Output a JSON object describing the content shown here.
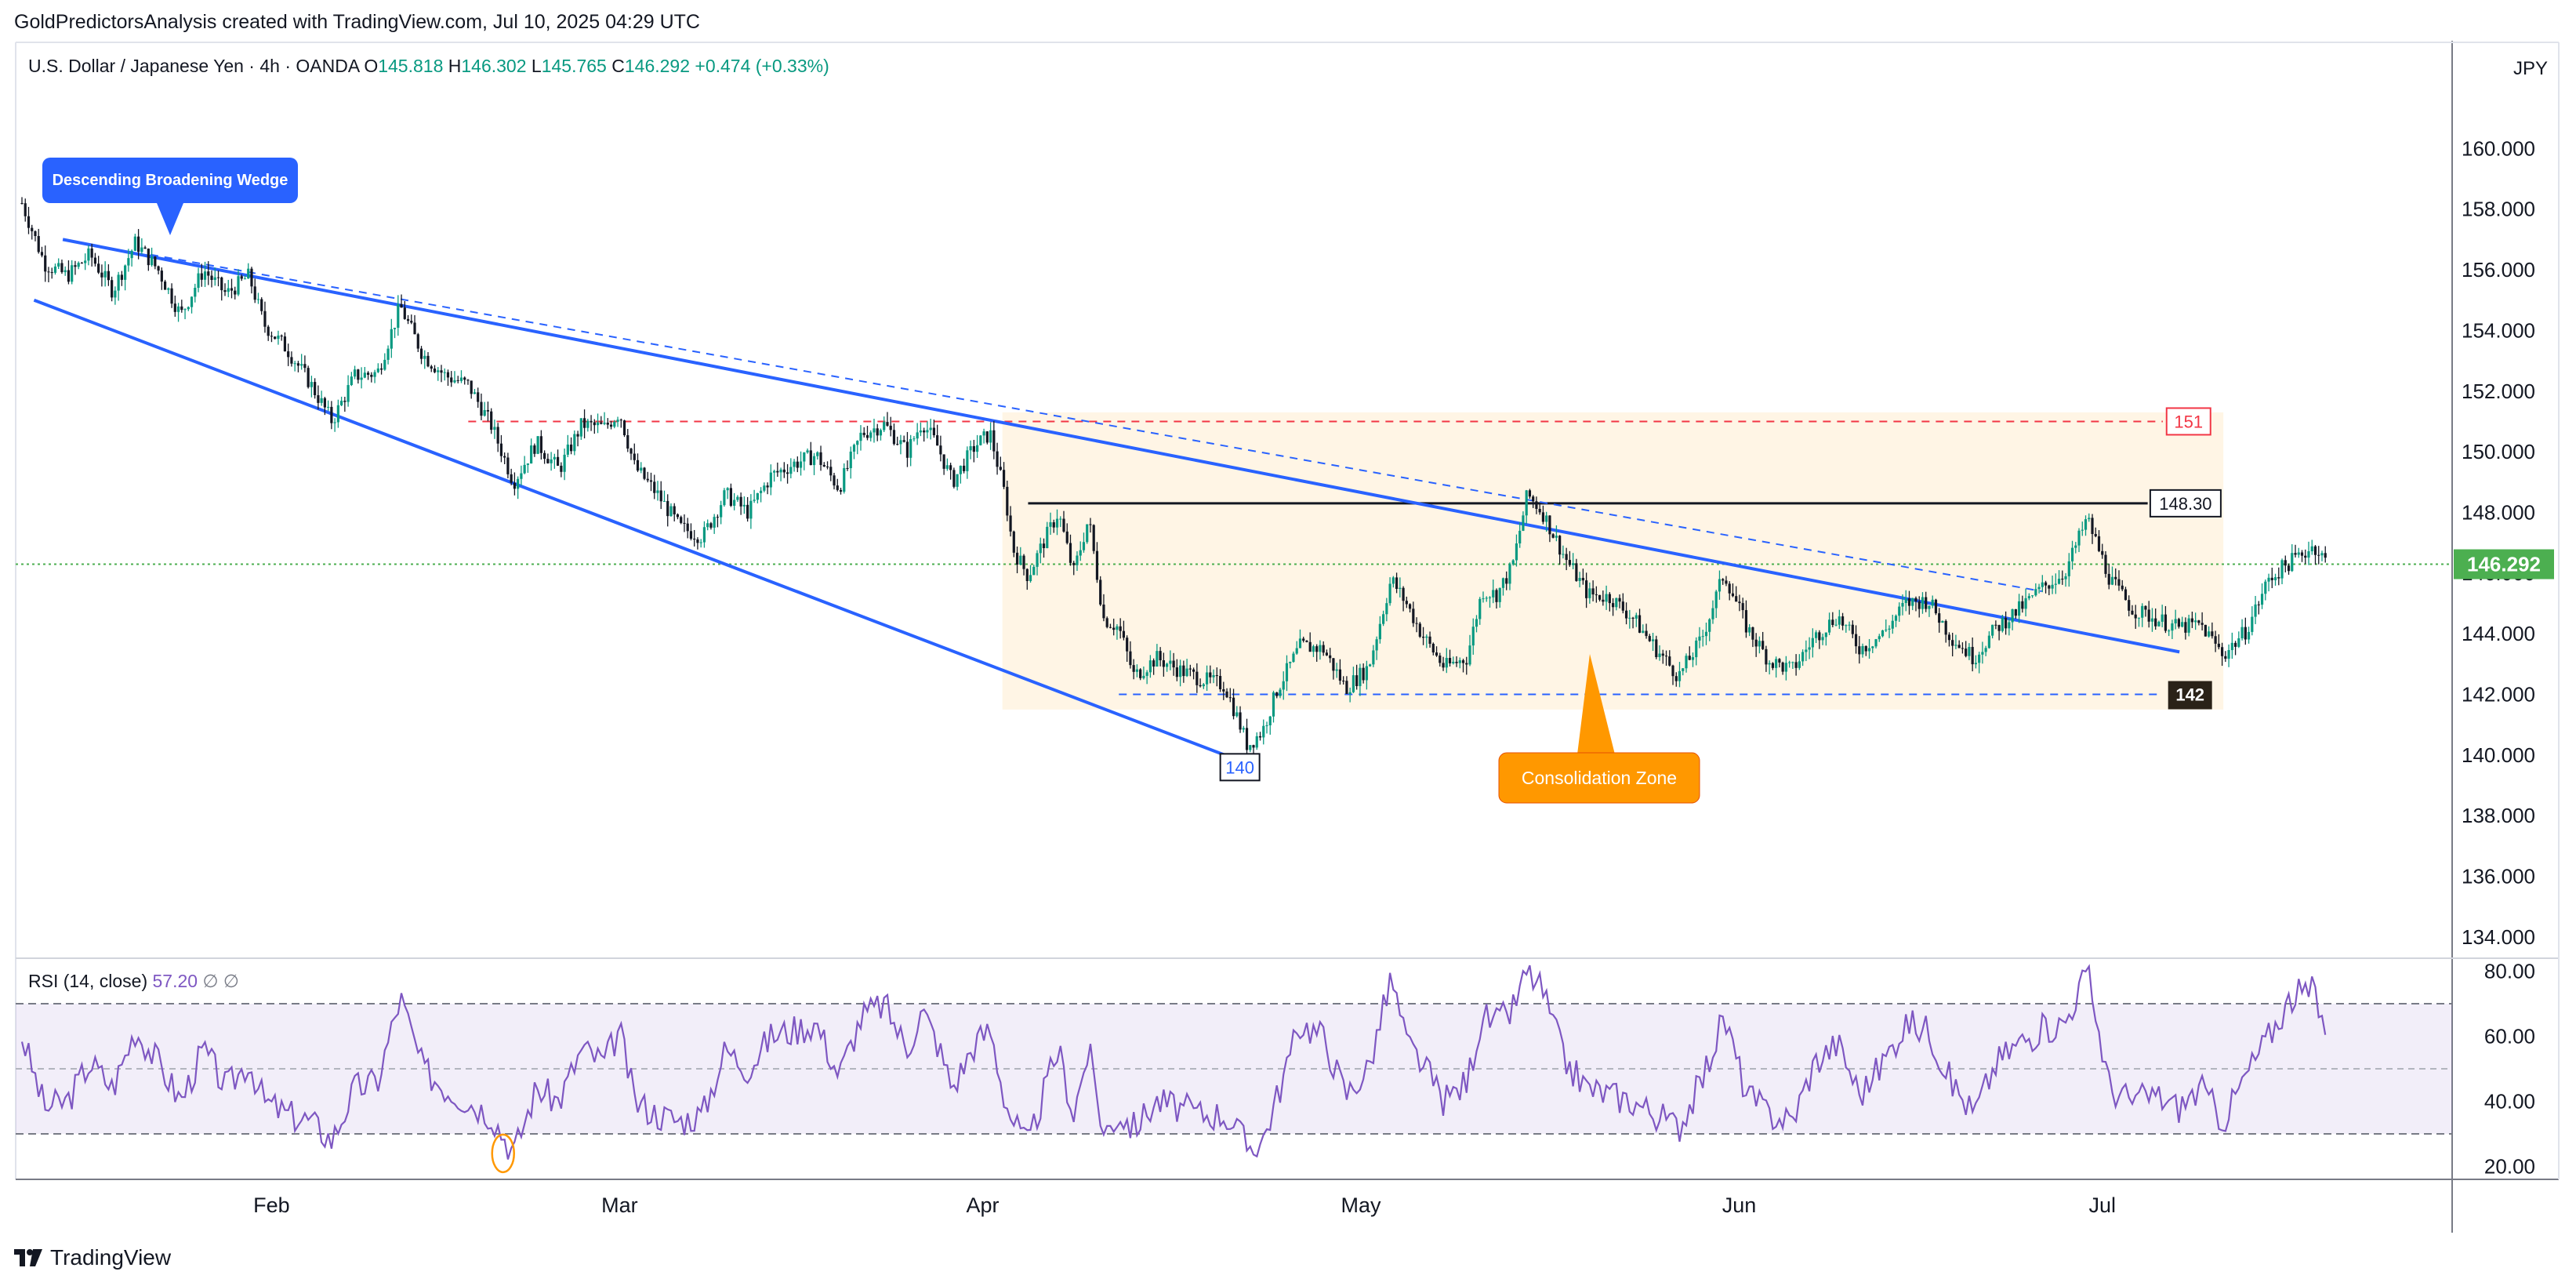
{
  "attribution": "GoldPredictorsAnalysis created with TradingView.com, Jul 10, 2025 04:29 UTC",
  "symbol": {
    "name": "U.S. Dollar / Japanese Yen",
    "interval": "4h",
    "exchange": "OANDA",
    "o_label": "O",
    "o": "145.818",
    "h_label": "H",
    "h": "146.302",
    "l_label": "L",
    "l": "145.765",
    "c_label": "C",
    "c": "146.292",
    "change": "+0.474 (+0.33%)"
  },
  "currency": "JPY",
  "brand": "TradingView",
  "colors": {
    "up": "#089981",
    "down": "#131722",
    "trendline": "#2962ff",
    "resistance": "#f23645",
    "consolidation_fill": "#fff3e0",
    "callout_orange": "#ff9800",
    "rsi_line": "#7e57c2",
    "price_marker": "#4caf50"
  },
  "chart_data": [
    {
      "type": "candlestick",
      "title": "U.S. Dollar / Japanese Yen · 4h · OANDA",
      "x_labels": [
        "Feb",
        "Mar",
        "Apr",
        "May",
        "Jun",
        "Jul"
      ],
      "y_ticks": [
        "160.000",
        "158.000",
        "156.000",
        "154.000",
        "152.000",
        "150.000",
        "148.000",
        "146.000",
        "144.000",
        "142.000",
        "140.000",
        "138.000",
        "136.000",
        "134.000"
      ],
      "ylim": [
        133.3,
        163.5
      ],
      "last_price": 146.292,
      "last_price_label": "146.292",
      "price_path": [
        [
          0.0,
          158.2
        ],
        [
          1.5,
          156.2
        ],
        [
          3.0,
          155.8
        ],
        [
          4.5,
          156.5
        ],
        [
          6.0,
          155.3
        ],
        [
          7.5,
          156.9
        ],
        [
          9.0,
          156.0
        ],
        [
          10.5,
          154.5
        ],
        [
          12.0,
          156.0
        ],
        [
          13.5,
          155.2
        ],
        [
          15.0,
          155.8
        ],
        [
          16.0,
          154.2
        ],
        [
          17.5,
          153.4
        ],
        [
          19.0,
          152.3
        ],
        [
          20.5,
          151.0
        ],
        [
          22.0,
          152.5
        ],
        [
          23.5,
          152.6
        ],
        [
          25.0,
          154.8
        ],
        [
          26.5,
          153.2
        ],
        [
          28.0,
          152.5
        ],
        [
          29.5,
          152.2
        ],
        [
          31.0,
          150.9
        ],
        [
          32.5,
          149.0
        ],
        [
          34.0,
          150.3
        ],
        [
          35.5,
          149.4
        ],
        [
          37.0,
          150.9
        ],
        [
          38.5,
          150.8
        ],
        [
          39.5,
          151.3
        ],
        [
          40.5,
          149.5
        ],
        [
          42.0,
          148.6
        ],
        [
          43.5,
          147.5
        ],
        [
          45.0,
          147.2
        ],
        [
          46.5,
          148.6
        ],
        [
          48.0,
          148.0
        ],
        [
          49.5,
          149.2
        ],
        [
          51.0,
          149.6
        ],
        [
          52.5,
          149.9
        ],
        [
          54.0,
          148.8
        ],
        [
          55.5,
          150.6
        ],
        [
          57.0,
          150.9
        ],
        [
          58.5,
          150.0
        ],
        [
          59.5,
          151.0
        ],
        [
          60.5,
          150.2
        ],
        [
          61.5,
          149.0
        ],
        [
          63.0,
          150.2
        ],
        [
          64.0,
          150.6
        ],
        [
          65.0,
          148.5
        ],
        [
          65.5,
          146.8
        ],
        [
          66.5,
          145.9
        ],
        [
          67.5,
          147.0
        ],
        [
          68.5,
          148.0
        ],
        [
          69.5,
          146.0
        ],
        [
          70.5,
          147.8
        ],
        [
          71.5,
          144.5
        ],
        [
          72.5,
          144.2
        ],
        [
          73.5,
          142.6
        ],
        [
          75.0,
          143.2
        ],
        [
          76.5,
          142.8
        ],
        [
          78.0,
          142.5
        ],
        [
          79.5,
          142.3
        ],
        [
          80.5,
          141.0
        ],
        [
          81.0,
          140.3
        ],
        [
          82.0,
          140.8
        ],
        [
          83.0,
          142.2
        ],
        [
          84.5,
          143.6
        ],
        [
          86.0,
          143.5
        ],
        [
          87.5,
          142.2
        ],
        [
          89.0,
          142.9
        ],
        [
          90.5,
          145.8
        ],
        [
          91.5,
          145.0
        ],
        [
          92.5,
          144.0
        ],
        [
          94.0,
          142.9
        ],
        [
          95.5,
          143.2
        ],
        [
          96.5,
          145.4
        ],
        [
          97.5,
          145.3
        ],
        [
          98.5,
          146.2
        ],
        [
          99.5,
          148.6
        ],
        [
          100.5,
          148.0
        ],
        [
          102.0,
          146.5
        ],
        [
          103.5,
          145.3
        ],
        [
          105.0,
          145.2
        ],
        [
          106.5,
          144.5
        ],
        [
          108.0,
          143.5
        ],
        [
          109.5,
          142.6
        ],
        [
          111.0,
          143.8
        ],
        [
          112.5,
          146.0
        ],
        [
          114.0,
          144.2
        ],
        [
          115.5,
          143.1
        ],
        [
          117.0,
          142.8
        ],
        [
          118.5,
          143.9
        ],
        [
          120.0,
          144.6
        ],
        [
          121.5,
          143.5
        ],
        [
          123.0,
          144.0
        ],
        [
          124.5,
          145.0
        ],
        [
          126.0,
          145.1
        ],
        [
          127.5,
          143.9
        ],
        [
          129.0,
          143.2
        ],
        [
          130.5,
          144.2
        ],
        [
          132.0,
          144.8
        ],
        [
          133.5,
          145.5
        ],
        [
          135.0,
          146.0
        ],
        [
          136.5,
          147.8
        ],
        [
          138.0,
          145.8
        ],
        [
          139.5,
          144.8
        ],
        [
          141.0,
          144.5
        ],
        [
          142.5,
          144.2
        ],
        [
          144.0,
          144.3
        ],
        [
          145.5,
          143.3
        ],
        [
          147.0,
          144.1
        ],
        [
          148.5,
          145.8
        ],
        [
          150.0,
          146.4
        ],
        [
          151.5,
          146.9
        ],
        [
          152.4,
          146.3
        ]
      ]
    },
    {
      "type": "line",
      "title": "RSI (14, close)",
      "legend_label": "RSI (14, close)",
      "value_label": "57.20",
      "extra_labels": [
        "∅",
        "∅"
      ],
      "y_ticks": [
        "80.00",
        "60.00",
        "40.00",
        "20.00"
      ],
      "ylim": [
        16,
        84
      ],
      "upper_band": 70,
      "mid_line": 50,
      "lower_band": 30,
      "series_path": [
        [
          0.0,
          60
        ],
        [
          1.5,
          38
        ],
        [
          3.0,
          40
        ],
        [
          4.5,
          52
        ],
        [
          6.0,
          44
        ],
        [
          7.5,
          62
        ],
        [
          9.0,
          52
        ],
        [
          10.5,
          40
        ],
        [
          12.0,
          56
        ],
        [
          13.5,
          44
        ],
        [
          15.0,
          52
        ],
        [
          16.0,
          40
        ],
        [
          17.5,
          36
        ],
        [
          19.0,
          34
        ],
        [
          20.5,
          28
        ],
        [
          22.0,
          44
        ],
        [
          23.5,
          46
        ],
        [
          25.0,
          72
        ],
        [
          26.5,
          50
        ],
        [
          28.0,
          44
        ],
        [
          29.5,
          40
        ],
        [
          31.0,
          36
        ],
        [
          32.5,
          24
        ],
        [
          34.0,
          44
        ],
        [
          35.5,
          40
        ],
        [
          37.0,
          56
        ],
        [
          38.5,
          52
        ],
        [
          39.5,
          62
        ],
        [
          40.5,
          40
        ],
        [
          42.0,
          36
        ],
        [
          43.5,
          34
        ],
        [
          45.0,
          36
        ],
        [
          46.5,
          56
        ],
        [
          48.0,
          50
        ],
        [
          49.5,
          60
        ],
        [
          51.0,
          62
        ],
        [
          52.5,
          64
        ],
        [
          54.0,
          48
        ],
        [
          55.5,
          66
        ],
        [
          57.0,
          70
        ],
        [
          58.5,
          56
        ],
        [
          59.5,
          68
        ],
        [
          60.5,
          58
        ],
        [
          61.5,
          44
        ],
        [
          63.0,
          58
        ],
        [
          64.0,
          62
        ],
        [
          65.0,
          40
        ],
        [
          65.5,
          34
        ],
        [
          66.5,
          26
        ],
        [
          67.5,
          42
        ],
        [
          68.5,
          56
        ],
        [
          69.5,
          36
        ],
        [
          70.5,
          56
        ],
        [
          71.5,
          30
        ],
        [
          72.5,
          36
        ],
        [
          73.5,
          32
        ],
        [
          75.0,
          40
        ],
        [
          76.5,
          38
        ],
        [
          78.0,
          36
        ],
        [
          79.5,
          36
        ],
        [
          80.5,
          30
        ],
        [
          81.0,
          26
        ],
        [
          82.0,
          28
        ],
        [
          83.0,
          42
        ],
        [
          84.5,
          64
        ],
        [
          86.0,
          60
        ],
        [
          87.5,
          42
        ],
        [
          89.0,
          50
        ],
        [
          90.5,
          78
        ],
        [
          91.5,
          58
        ],
        [
          92.5,
          52
        ],
        [
          94.0,
          40
        ],
        [
          95.5,
          46
        ],
        [
          96.5,
          66
        ],
        [
          97.5,
          64
        ],
        [
          98.5,
          68
        ],
        [
          99.5,
          80
        ],
        [
          100.5,
          74
        ],
        [
          102.0,
          52
        ],
        [
          103.5,
          44
        ],
        [
          105.0,
          42
        ],
        [
          106.5,
          40
        ],
        [
          108.0,
          36
        ],
        [
          109.5,
          32
        ],
        [
          111.0,
          46
        ],
        [
          112.5,
          66
        ],
        [
          114.0,
          42
        ],
        [
          115.5,
          36
        ],
        [
          117.0,
          34
        ],
        [
          118.5,
          52
        ],
        [
          120.0,
          58
        ],
        [
          121.5,
          42
        ],
        [
          123.0,
          52
        ],
        [
          124.5,
          64
        ],
        [
          126.0,
          62
        ],
        [
          127.5,
          46
        ],
        [
          129.0,
          36
        ],
        [
          130.5,
          52
        ],
        [
          132.0,
          58
        ],
        [
          133.5,
          62
        ],
        [
          135.0,
          64
        ],
        [
          136.5,
          80
        ],
        [
          138.0,
          44
        ],
        [
          139.5,
          40
        ],
        [
          141.0,
          42
        ],
        [
          142.5,
          38
        ],
        [
          144.0,
          44
        ],
        [
          145.5,
          34
        ],
        [
          147.0,
          48
        ],
        [
          148.5,
          60
        ],
        [
          150.0,
          72
        ],
        [
          151.5,
          74
        ],
        [
          152.4,
          57.2
        ]
      ]
    }
  ],
  "annotations": {
    "wedge_label": "Descending Broadening Wedge",
    "consolidation_label": "Consolidation Zone",
    "level_151": "151",
    "level_148_30": "148.30",
    "level_142": "142",
    "level_140": "140"
  }
}
